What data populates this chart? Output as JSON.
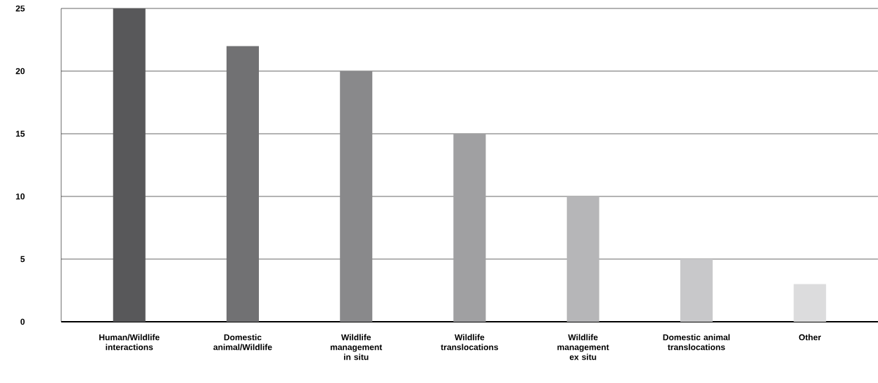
{
  "chart_data": {
    "type": "bar",
    "categories": [
      "Human/Wildlife interactions",
      "Domestic animal/Wildlife",
      "Wildlife management in situ",
      "Wildlife translocations",
      "Wildlife management ex situ",
      "Domestic animal translocations",
      "Other"
    ],
    "values": [
      25,
      22,
      20,
      15,
      10,
      5,
      3
    ],
    "colors": [
      "#58585a",
      "#717173",
      "#89898b",
      "#a0a0a2",
      "#b6b6b8",
      "#c8c8ca",
      "#dcdcdd"
    ],
    "ylim": [
      0,
      25
    ],
    "yticks": [
      0,
      5,
      10,
      15,
      20,
      25
    ],
    "grid": "y"
  }
}
